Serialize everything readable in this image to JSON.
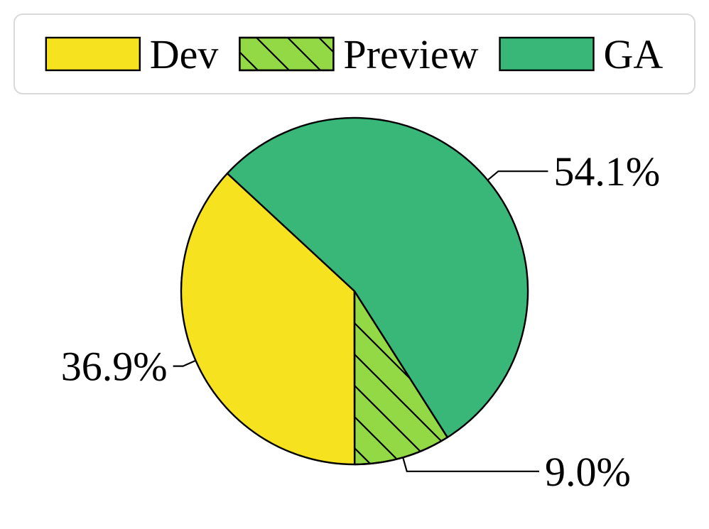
{
  "chart_data": {
    "type": "pie",
    "series": [
      {
        "name": "Dev",
        "value": 36.9,
        "label": "36.9%",
        "color": "#f7e21f",
        "pattern": "none"
      },
      {
        "name": "Preview",
        "value": 9.0,
        "label": "9.0%",
        "color": "#93d845",
        "pattern": "diagonal-hatch"
      },
      {
        "name": "GA",
        "value": 54.1,
        "label": "54.1%",
        "color": "#38b779",
        "pattern": "none"
      }
    ],
    "legend_position": "top",
    "edge_color": "#000000"
  }
}
